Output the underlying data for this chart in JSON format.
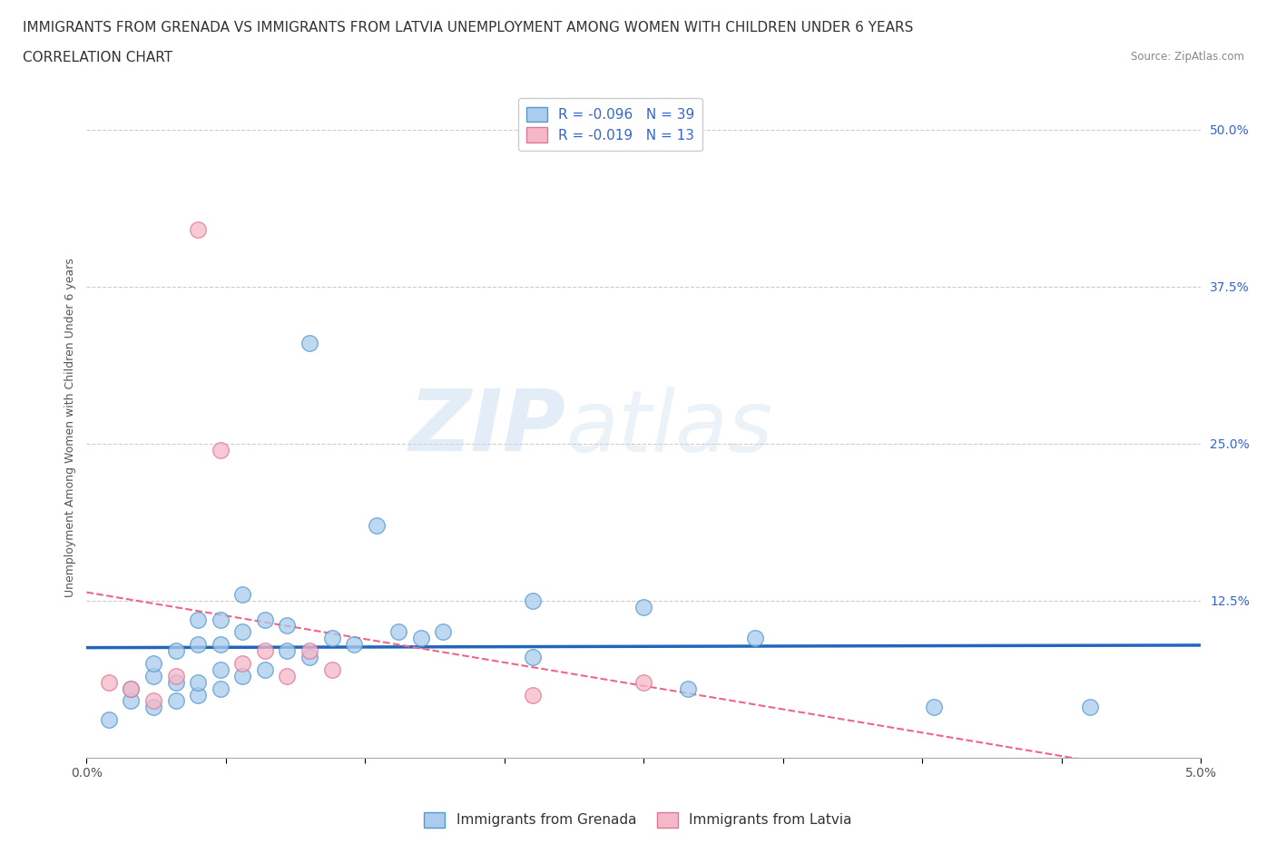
{
  "title_line1": "IMMIGRANTS FROM GRENADA VS IMMIGRANTS FROM LATVIA UNEMPLOYMENT AMONG WOMEN WITH CHILDREN UNDER 6 YEARS",
  "title_line2": "CORRELATION CHART",
  "source": "Source: ZipAtlas.com",
  "ylabel": "Unemployment Among Women with Children Under 6 years",
  "xlim": [
    0.0,
    0.05
  ],
  "ylim": [
    0.0,
    0.525
  ],
  "yticks": [
    0.0,
    0.125,
    0.25,
    0.375,
    0.5
  ],
  "ytick_labels": [
    "",
    "12.5%",
    "25.0%",
    "37.5%",
    "50.0%"
  ],
  "xticks": [
    0.0,
    0.00625,
    0.0125,
    0.01875,
    0.025,
    0.03125,
    0.0375,
    0.04375,
    0.05
  ],
  "xtick_labels": [
    "0.0%",
    "",
    "",
    "",
    "",
    "",
    "",
    "",
    "5.0%"
  ],
  "grenada_color": "#aaccee",
  "latvia_color": "#f5b8c8",
  "grenada_edge_color": "#5599cc",
  "latvia_edge_color": "#dd7799",
  "grenada_line_color": "#2266bb",
  "latvia_line_color": "#ee6688",
  "legend_R_grenada": "R = -0.096",
  "legend_N_grenada": "N = 39",
  "legend_R_latvia": "R = -0.019",
  "legend_N_latvia": "N = 13",
  "watermark_zip": "ZIP",
  "watermark_atlas": "atlas",
  "background_color": "#ffffff",
  "grid_color": "#cccccc",
  "title_fontsize": 11,
  "axis_label_fontsize": 9,
  "tick_fontsize": 10,
  "legend_fontsize": 11,
  "grenada_x": [
    0.001,
    0.002,
    0.002,
    0.003,
    0.003,
    0.003,
    0.004,
    0.004,
    0.004,
    0.005,
    0.005,
    0.005,
    0.005,
    0.006,
    0.006,
    0.006,
    0.006,
    0.007,
    0.007,
    0.007,
    0.008,
    0.008,
    0.009,
    0.009,
    0.01,
    0.01,
    0.011,
    0.012,
    0.013,
    0.014,
    0.015,
    0.016,
    0.02,
    0.02,
    0.025,
    0.027,
    0.03,
    0.038,
    0.045
  ],
  "grenada_y": [
    0.03,
    0.045,
    0.055,
    0.04,
    0.065,
    0.075,
    0.045,
    0.06,
    0.085,
    0.05,
    0.06,
    0.09,
    0.11,
    0.055,
    0.07,
    0.09,
    0.11,
    0.065,
    0.1,
    0.13,
    0.07,
    0.11,
    0.085,
    0.105,
    0.08,
    0.33,
    0.095,
    0.09,
    0.185,
    0.1,
    0.095,
    0.1,
    0.125,
    0.08,
    0.12,
    0.055,
    0.095,
    0.04,
    0.04
  ],
  "latvia_x": [
    0.001,
    0.002,
    0.003,
    0.004,
    0.005,
    0.006,
    0.007,
    0.008,
    0.009,
    0.01,
    0.011,
    0.02,
    0.025
  ],
  "latvia_y": [
    0.06,
    0.055,
    0.045,
    0.065,
    0.42,
    0.245,
    0.075,
    0.085,
    0.065,
    0.085,
    0.07,
    0.05,
    0.06
  ]
}
